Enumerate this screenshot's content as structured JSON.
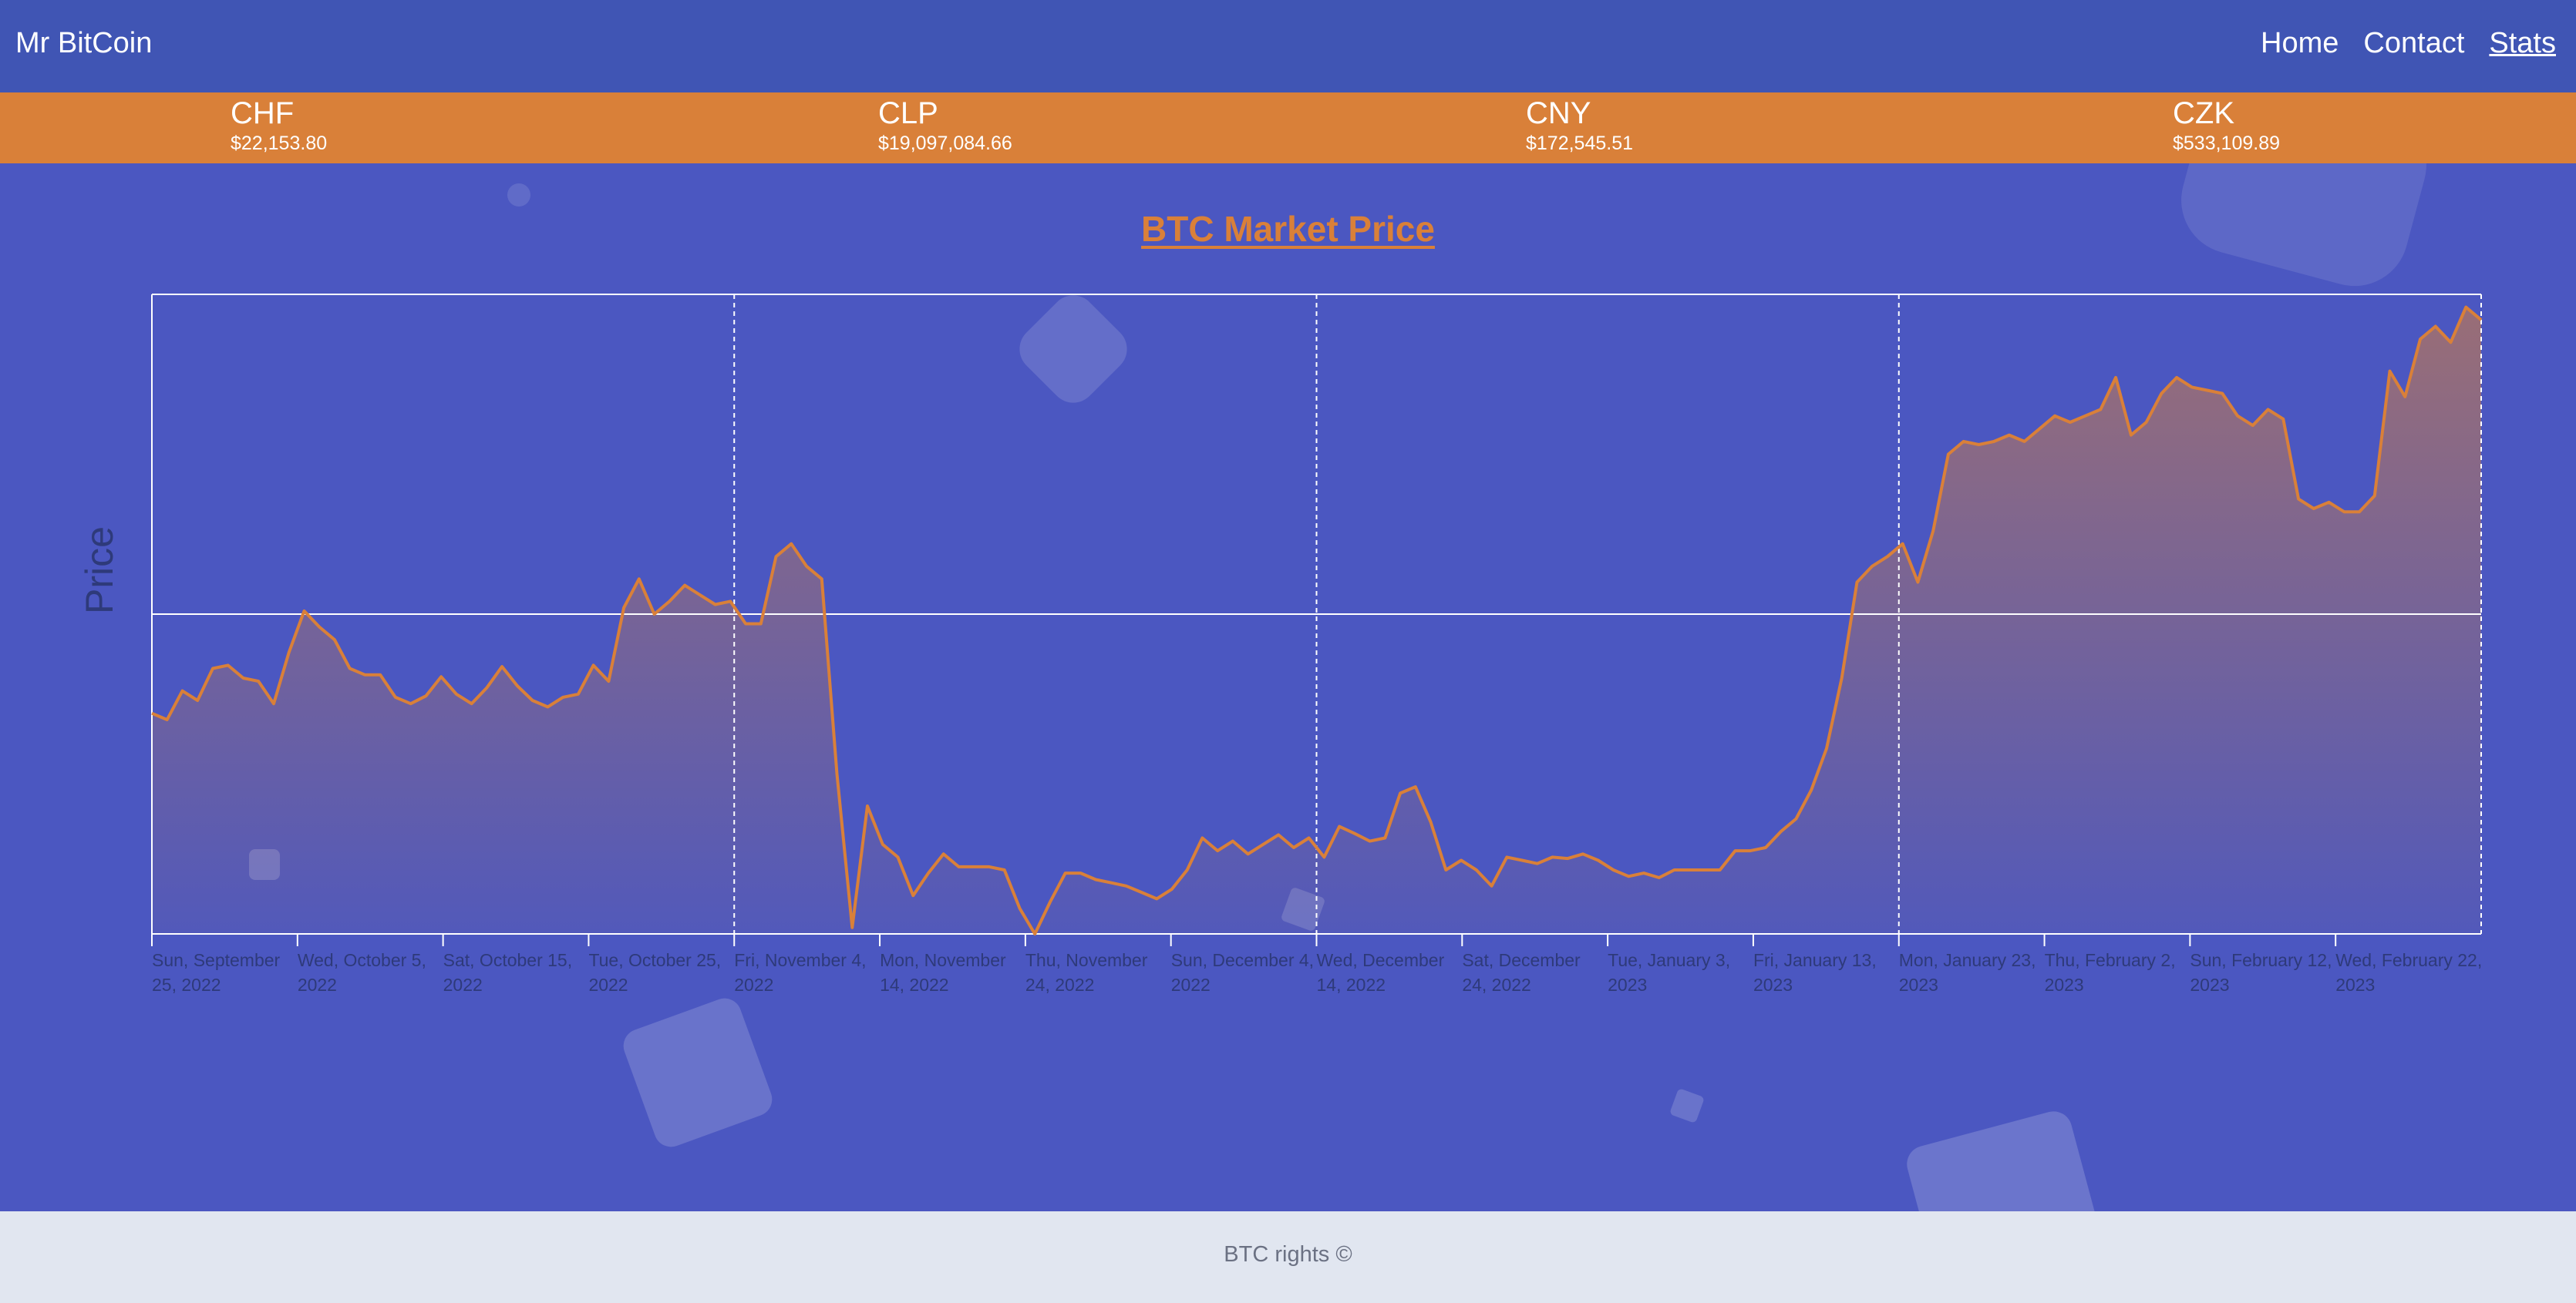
{
  "header": {
    "brand": "Mr BitCoin",
    "nav": [
      {
        "label": "Home"
      },
      {
        "label": "Contact"
      },
      {
        "label": "Stats",
        "active": true
      }
    ]
  },
  "rates": [
    {
      "code": "CHF",
      "price": "$22,153.80"
    },
    {
      "code": "CLP",
      "price": "$19,097,084.66"
    },
    {
      "code": "CNY",
      "price": "$172,545.51"
    },
    {
      "code": "CZK",
      "price": "$533,109.89"
    }
  ],
  "chart_data": {
    "type": "area",
    "title": "BTC Market Price",
    "xlabel": "",
    "ylabel": "Price",
    "grid": true,
    "colors": {
      "line": "#D98039",
      "fill_top": "#D98039",
      "axis": "#ffffff",
      "tick_text": "#2E3A7A"
    },
    "x_ticks": [
      [
        "Sun, September",
        "25, 2022"
      ],
      [
        "Wed, October 5,",
        "2022"
      ],
      [
        "Sat, October 15,",
        "2022"
      ],
      [
        "Tue, October 25,",
        "2022"
      ],
      [
        "Fri, November 4,",
        "2022"
      ],
      [
        "Mon, November",
        "14, 2022"
      ],
      [
        "Thu, November",
        "24, 2022"
      ],
      [
        "Sun, December 4,",
        "2022"
      ],
      [
        "Wed, December",
        "14, 2022"
      ],
      [
        "Sat, December",
        "24, 2022"
      ],
      [
        "Tue, January 3,",
        "2023"
      ],
      [
        "Fri, January 13,",
        "2023"
      ],
      [
        "Mon, January 23,",
        "2023"
      ],
      [
        "Thu, February 2,",
        "2023"
      ],
      [
        "Sun, February 12,",
        "2023"
      ],
      [
        "Wed, February 22,",
        "2023"
      ]
    ],
    "ylim": [
      0,
      1
    ],
    "series": [
      {
        "values": [
          0.345,
          0.335,
          0.38,
          0.365,
          0.415,
          0.42,
          0.4,
          0.395,
          0.36,
          0.44,
          0.505,
          0.48,
          0.46,
          0.415,
          0.405,
          0.405,
          0.37,
          0.36,
          0.372,
          0.402,
          0.375,
          0.36,
          0.385,
          0.418,
          0.388,
          0.365,
          0.355,
          0.37,
          0.375,
          0.42,
          0.395,
          0.51,
          0.555,
          0.5,
          0.52,
          0.545,
          0.53,
          0.515,
          0.52,
          0.485,
          0.485,
          0.59,
          0.61,
          0.575,
          0.555,
          0.25,
          0.01,
          0.2,
          0.14,
          0.12,
          0.06,
          0.095,
          0.125,
          0.105,
          0.105,
          0.105,
          0.1,
          0.04,
          0.0,
          0.05,
          0.095,
          0.095,
          0.085,
          0.08,
          0.075,
          0.065,
          0.055,
          0.07,
          0.1,
          0.15,
          0.13,
          0.145,
          0.125,
          0.14,
          0.155,
          0.135,
          0.15,
          0.12,
          0.168,
          0.157,
          0.145,
          0.15,
          0.22,
          0.23,
          0.175,
          0.1,
          0.115,
          0.1,
          0.075,
          0.12,
          0.115,
          0.11,
          0.12,
          0.118,
          0.125,
          0.115,
          0.1,
          0.09,
          0.095,
          0.088,
          0.1,
          0.1,
          0.1,
          0.1,
          0.13,
          0.13,
          0.135,
          0.16,
          0.18,
          0.225,
          0.29,
          0.4,
          0.55,
          0.575,
          0.59,
          0.61,
          0.55,
          0.63,
          0.75,
          0.77,
          0.765,
          0.77,
          0.78,
          0.77,
          0.79,
          0.81,
          0.8,
          0.81,
          0.82,
          0.87,
          0.78,
          0.8,
          0.845,
          0.87,
          0.855,
          0.85,
          0.845,
          0.81,
          0.795,
          0.82,
          0.805,
          0.68,
          0.665,
          0.675,
          0.66,
          0.66,
          0.685,
          0.88,
          0.84,
          0.93,
          0.95,
          0.925,
          0.98,
          0.96
        ]
      }
    ]
  },
  "footer": {
    "text": "BTC rights ©"
  }
}
